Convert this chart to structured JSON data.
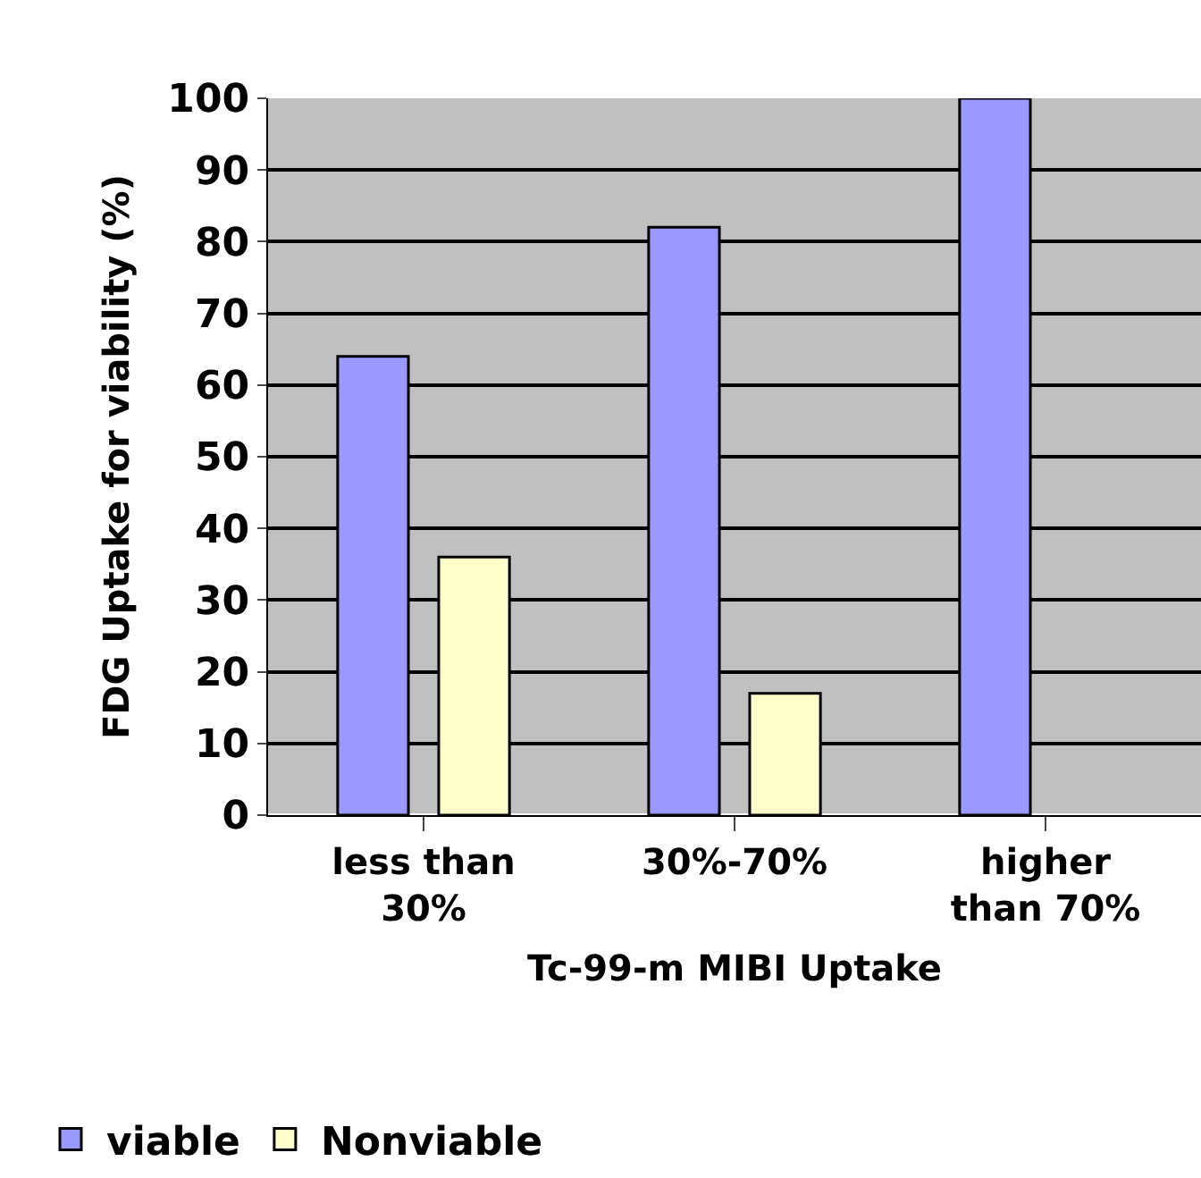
{
  "chart_data": {
    "type": "bar",
    "xlabel": "Tc-99-m MIBI Uptake",
    "ylabel": "FDG Uptake for viability (%)",
    "categories": [
      "less than 30%",
      "30%-70%",
      "higher than 70%"
    ],
    "series": [
      {
        "name": "viable",
        "color": "#9999ff",
        "values": [
          64,
          82,
          100
        ]
      },
      {
        "name": "Nonviable",
        "color": "#ffffcc",
        "values": [
          36,
          17,
          null
        ]
      }
    ],
    "ylim": [
      0,
      100
    ],
    "yticks": [
      0,
      10,
      20,
      30,
      40,
      50,
      60,
      70,
      80,
      90,
      100
    ],
    "grid": "y",
    "legend": "bottom"
  }
}
